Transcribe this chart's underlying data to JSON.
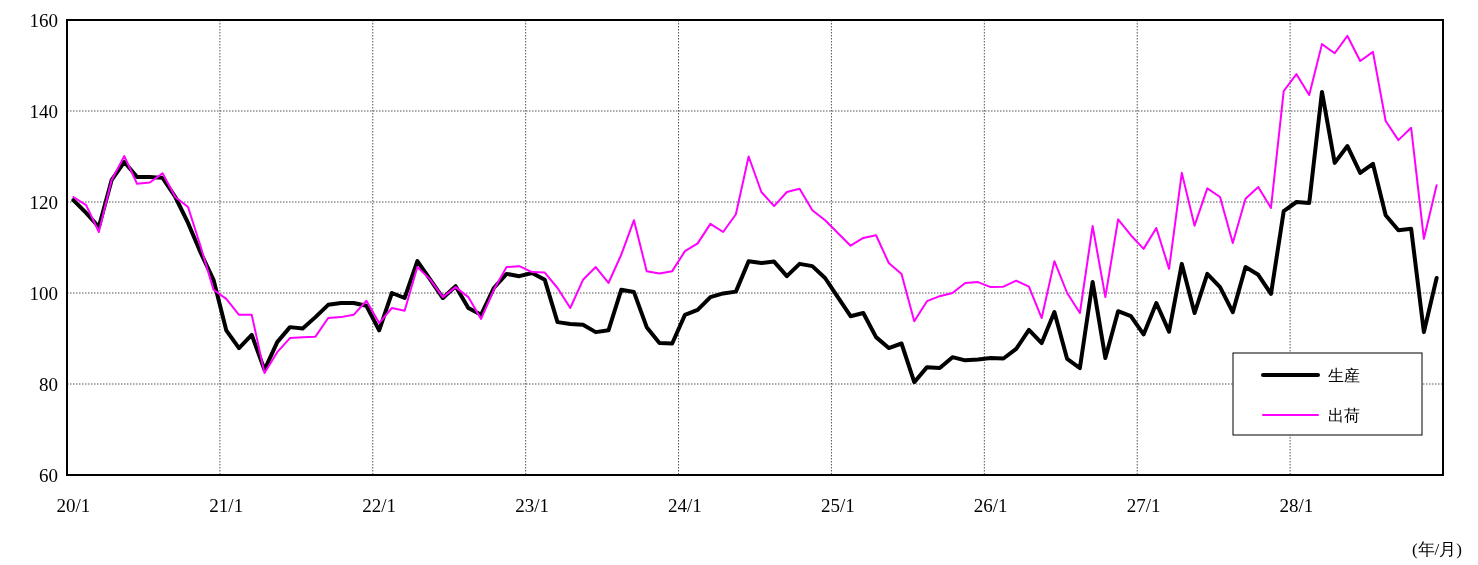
{
  "chart_data": {
    "type": "line",
    "xlabel": "(年/月)",
    "categories": [
      "20/1",
      null,
      null,
      null,
      null,
      null,
      null,
      null,
      null,
      null,
      null,
      null,
      "21/1",
      null,
      null,
      null,
      null,
      null,
      null,
      null,
      null,
      null,
      null,
      null,
      "22/1",
      null,
      null,
      null,
      null,
      null,
      null,
      null,
      null,
      null,
      null,
      null,
      "23/1",
      null,
      null,
      null,
      null,
      null,
      null,
      null,
      null,
      null,
      null,
      null,
      "24/1",
      null,
      null,
      null,
      null,
      null,
      null,
      null,
      null,
      null,
      null,
      null,
      "25/1",
      null,
      null,
      null,
      null,
      null,
      null,
      null,
      null,
      null,
      null,
      null,
      "26/1",
      null,
      null,
      null,
      null,
      null,
      null,
      null,
      null,
      null,
      null,
      null,
      "27/1",
      null,
      null,
      null,
      null,
      null,
      null,
      null,
      null,
      null,
      null,
      null,
      "28/1",
      null,
      null,
      null,
      null,
      null,
      null,
      null,
      null,
      null,
      null,
      null
    ],
    "series": [
      {
        "name": "生産",
        "color": "#000000",
        "values": [
          120.4,
          117.6,
          114.5,
          124.8,
          128.8,
          125.5,
          125.5,
          125.3,
          121.1,
          115.4,
          108.8,
          102.9,
          91.8,
          87.9,
          90.8,
          83.1,
          89.2,
          92.5,
          92.2,
          94.7,
          97.4,
          97.8,
          97.8,
          97.2,
          91.8,
          100,
          98.9,
          107,
          103,
          98.9,
          101.5,
          96.7,
          95.2,
          101.1,
          104.2,
          103.7,
          104.4,
          102.9,
          93.6,
          93.2,
          93,
          91.4,
          91.8,
          100.7,
          100.2,
          92.5,
          89,
          88.9,
          95.2,
          96.3,
          99.1,
          99.9,
          100.3,
          107,
          106.6,
          106.9,
          103.7,
          106.4,
          105.9,
          103.3,
          99.1,
          94.9,
          95.6,
          90.3,
          87.9,
          88.9,
          80.4,
          83.7,
          83.5,
          85.9,
          85.2,
          85.4,
          85.7,
          85.6,
          87.7,
          91.9,
          89,
          95.8,
          85.5,
          83.5,
          102.4,
          85.7,
          96,
          94.9,
          90.9,
          97.8,
          91.5,
          106.4,
          95.6,
          104.2,
          101.3,
          95.8,
          105.7,
          104,
          99.8,
          118,
          120,
          119.8,
          144.2,
          128.6,
          132.3,
          126.4,
          128.4,
          117.1,
          113.8,
          114.1,
          91.4,
          103.3
        ]
      },
      {
        "name": "出荷",
        "color": "#ff00ff",
        "values": [
          121.1,
          119.3,
          113.4,
          124.8,
          130.1,
          124,
          124.3,
          126.3,
          121.1,
          118.9,
          110.1,
          100.7,
          98.7,
          95.2,
          95.2,
          82.4,
          87,
          90.1,
          90.3,
          90.4,
          94.5,
          94.7,
          95.2,
          98.3,
          93.4,
          96.7,
          96.1,
          105.7,
          103,
          99.1,
          101.3,
          99.1,
          94.3,
          100.7,
          105.7,
          105.9,
          104.6,
          104.5,
          101.1,
          96.7,
          102.9,
          105.7,
          102.2,
          108.4,
          116,
          104.8,
          104.3,
          104.8,
          109.2,
          110.9,
          115.2,
          113.4,
          117.3,
          130,
          122.2,
          119.1,
          122.2,
          122.9,
          118.2,
          116,
          113.2,
          110.4,
          112.1,
          112.7,
          106.6,
          104.2,
          93.8,
          98.2,
          99.3,
          100,
          102.2,
          102.4,
          101.3,
          101.4,
          102.7,
          101.4,
          94.5,
          107,
          100,
          95.6,
          114.7,
          99.1,
          116.2,
          112.7,
          109.7,
          114.3,
          105.3,
          126.4,
          114.8,
          123,
          121.1,
          111,
          120.7,
          123.3,
          118.7,
          144.4,
          148.1,
          143.5,
          154.7,
          152.7,
          156.5,
          151,
          153,
          137.8,
          133.6,
          136.3,
          111.9,
          123.7
        ]
      }
    ],
    "ylim": [
      60,
      160
    ],
    "yticks": [
      60,
      80,
      100,
      120,
      140,
      160
    ],
    "grid": true,
    "legend": "bottom right",
    "marker": "none",
    "line_style": "solid"
  }
}
